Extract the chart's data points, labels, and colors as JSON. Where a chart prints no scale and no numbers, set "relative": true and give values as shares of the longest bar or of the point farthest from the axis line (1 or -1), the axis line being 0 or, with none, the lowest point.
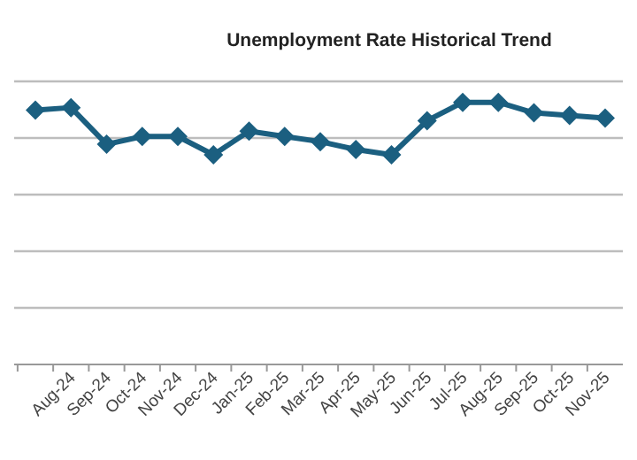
{
  "chart_data": {
    "type": "line",
    "title": "Unemployment Rate Historical Trend",
    "relative": true,
    "grid": true,
    "marker": "diamond",
    "line_style": "solid",
    "categories": [
      null,
      "Aug-24",
      "Sep-24",
      "Oct-24",
      "Nov-24",
      "Dec-24",
      "Jan-25",
      "Feb-25",
      "Mar-25",
      "Apr-25",
      "May-25",
      "Jun-25",
      "Jul-25",
      "Aug-25",
      "Sep-25",
      "Oct-25",
      "Nov-25"
    ],
    "series": [
      {
        "color": "#1b5f80",
        "values": [
          0.97,
          0.98,
          0.84,
          0.87,
          0.87,
          0.8,
          0.89,
          0.87,
          0.85,
          0.82,
          0.8,
          0.93,
          1,
          1,
          0.96,
          0.95,
          0.94
        ]
      }
    ]
  }
}
